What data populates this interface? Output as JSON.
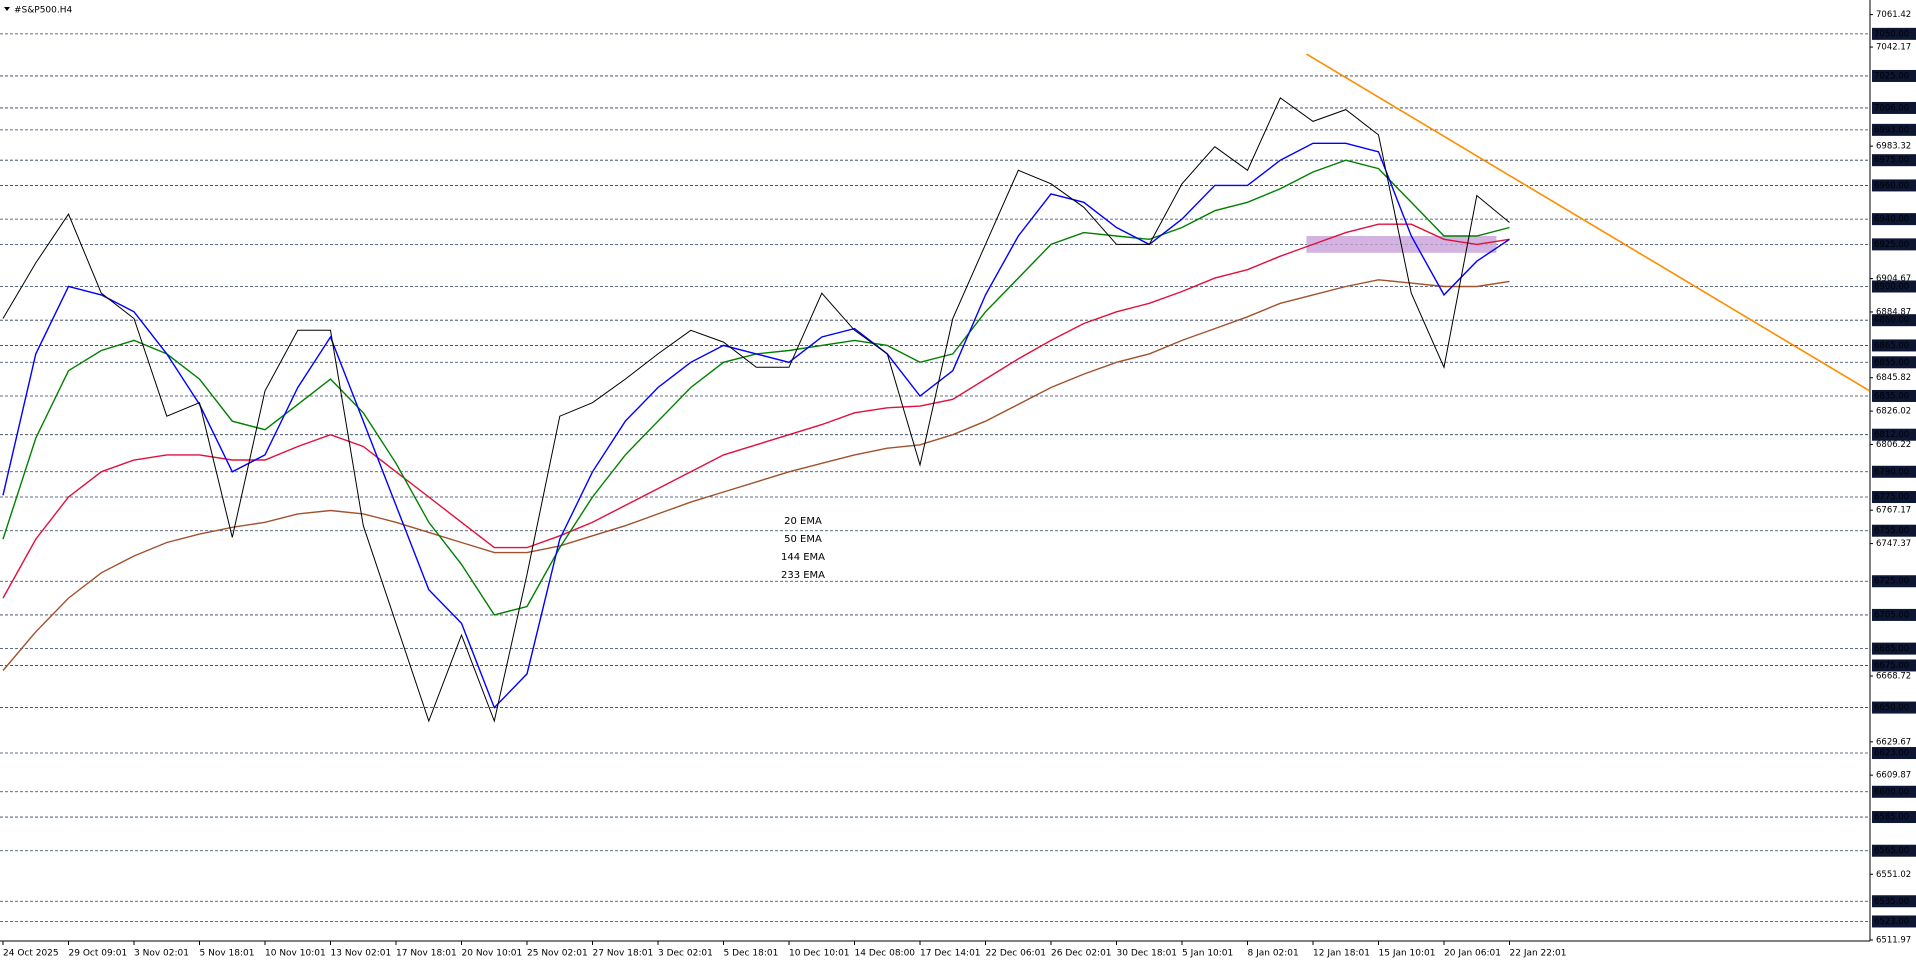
{
  "chart_data": {
    "type": "line",
    "title": "#S&P500.H4",
    "categories": [
      "24 Oct 2025",
      null,
      "29 Oct 09:01",
      null,
      "3 Nov 02:01",
      null,
      "5 Nov 18:01",
      null,
      "10 Nov 10:01",
      null,
      "13 Nov 02:01",
      null,
      "17 Nov 18:01",
      null,
      "20 Nov 10:01",
      null,
      "25 Nov 02:01",
      null,
      "27 Nov 18:01",
      null,
      "3 Dec 02:01",
      null,
      "5 Dec 18:01",
      null,
      "10 Dec 10:01",
      null,
      "14 Dec 08:00",
      null,
      "17 Dec 14:01",
      null,
      "22 Dec 06:01",
      null,
      "26 Dec 02:01",
      null,
      "30 Dec 18:01",
      null,
      "5 Jan 10:01",
      null,
      "8 Jan 02:01",
      null,
      "12 Jan 18:01",
      null,
      "15 Jan 10:01",
      null,
      "20 Jan 06:01",
      null,
      "22 Jan 22:01"
    ],
    "price": {
      "color": "#000000",
      "values": [
        6881,
        6914,
        6943,
        6896,
        6881,
        6823,
        6831,
        6751,
        6838,
        6874,
        6874,
        6758,
        6700,
        6642,
        6693,
        6642,
        6729,
        6823,
        6831,
        6845,
        6860,
        6874,
        6867,
        6852,
        6852,
        6896,
        6874,
        6860,
        6794,
        6881,
        6925,
        6969,
        6961,
        6947,
        6925,
        6925,
        6961,
        6983,
        6969,
        7012,
        6998,
        7005,
        6990,
        6896,
        6852,
        6954,
        6938
      ]
    },
    "series": [
      {
        "name": "20 EMA",
        "color": "#0000ff",
        "values": [
          6776,
          6860,
          6900,
          6895,
          6885,
          6860,
          6830,
          6790,
          6800,
          6840,
          6870,
          6820,
          6770,
          6720,
          6700,
          6650,
          6670,
          6750,
          6790,
          6820,
          6840,
          6855,
          6865,
          6860,
          6855,
          6870,
          6875,
          6860,
          6835,
          6850,
          6895,
          6930,
          6955,
          6950,
          6935,
          6925,
          6940,
          6960,
          6960,
          6975,
          6985,
          6985,
          6980,
          6930,
          6895,
          6915,
          6928
        ]
      },
      {
        "name": "50 EMA",
        "color": "#008000",
        "values": [
          6750,
          6810,
          6850,
          6862,
          6868,
          6860,
          6845,
          6820,
          6815,
          6830,
          6845,
          6825,
          6795,
          6760,
          6735,
          6705,
          6710,
          6745,
          6775,
          6800,
          6820,
          6840,
          6855,
          6860,
          6862,
          6865,
          6868,
          6865,
          6855,
          6860,
          6885,
          6905,
          6925,
          6932,
          6930,
          6928,
          6935,
          6945,
          6950,
          6958,
          6968,
          6975,
          6970,
          6950,
          6930,
          6930,
          6935
        ]
      },
      {
        "name": "144 EMA",
        "color": "#e0103c",
        "values": [
          6715,
          6750,
          6775,
          6790,
          6797,
          6800,
          6800,
          6797,
          6797,
          6805,
          6812,
          6805,
          6790,
          6775,
          6760,
          6745,
          6745,
          6752,
          6760,
          6770,
          6780,
          6790,
          6800,
          6806,
          6812,
          6818,
          6825,
          6828,
          6829,
          6833,
          6845,
          6857,
          6868,
          6878,
          6885,
          6890,
          6897,
          6905,
          6910,
          6918,
          6925,
          6932,
          6937,
          6937,
          6928,
          6925,
          6928
        ]
      },
      {
        "name": "233 EMA",
        "color": "#a0522d",
        "values": [
          6672,
          6695,
          6715,
          6730,
          6740,
          6748,
          6753,
          6757,
          6760,
          6765,
          6767,
          6765,
          6760,
          6754,
          6748,
          6742,
          6742,
          6746,
          6752,
          6758,
          6765,
          6772,
          6778,
          6784,
          6790,
          6795,
          6800,
          6804,
          6806,
          6812,
          6820,
          6830,
          6840,
          6848,
          6855,
          6860,
          6868,
          6875,
          6882,
          6890,
          6895,
          6900,
          6904,
          6902,
          6900,
          6900,
          6903
        ]
      }
    ],
    "trendline": {
      "color": "#ff8c00",
      "x": [
        39.8,
        57
      ],
      "values": [
        7038,
        6838
      ]
    },
    "zone": {
      "color": "#c8a0d8",
      "x": [
        39.8,
        45.6
      ],
      "values": [
        6920,
        6930
      ]
    },
    "ylim": [
      6511.4,
      7070.1
    ],
    "yticks": [
      7061.42,
      {
        "value": 7050,
        "label": "7050.00"
      },
      7042.17,
      {
        "value": 7025,
        "label": "7025.00"
      },
      {
        "value": 7006,
        "label": "7006.00"
      },
      {
        "value": 6993,
        "label": "6993.00"
      },
      6983.32,
      {
        "value": 6975,
        "label": "6975.00"
      },
      {
        "value": 6960,
        "label": "6960.00"
      },
      {
        "value": 6940,
        "label": "6940.00"
      },
      {
        "value": 6925,
        "label": "6925.00"
      },
      6904.67,
      {
        "value": 6900,
        "label": "6900.00"
      },
      6884.87,
      {
        "value": 6880,
        "label": "6880.00"
      },
      {
        "value": 6865,
        "label": "6865.00"
      },
      {
        "value": 6855,
        "label": "6855.00"
      },
      6845.82,
      {
        "value": 6835,
        "label": "6835.00"
      },
      6826.02,
      {
        "value": 6812,
        "label": "6812.00"
      },
      6806.22,
      {
        "value": 6790,
        "label": "6790.00"
      },
      {
        "value": 6775,
        "label": "6775.00"
      },
      6767.17,
      {
        "value": 6755,
        "label": "6755.00"
      },
      6747.37,
      {
        "value": 6725,
        "label": "6725.00"
      },
      {
        "value": 6705,
        "label": "6705.00"
      },
      {
        "value": 6685,
        "label": "6685.00"
      },
      {
        "value": 6675,
        "label": "6675.00"
      },
      6668.72,
      {
        "value": 6650,
        "label": "6650.00"
      },
      6629.67,
      {
        "value": 6623,
        "label": "6623.00"
      },
      6609.87,
      {
        "value": 6600,
        "label": "6600.00"
      },
      {
        "value": 6585,
        "label": "6585.00"
      },
      {
        "value": 6565,
        "label": "6565.00"
      },
      6551.02,
      {
        "value": 6535,
        "label": "6535.00"
      },
      {
        "value": 6523,
        "label": "6523.00"
      },
      6511.97
    ],
    "grid": true
  }
}
